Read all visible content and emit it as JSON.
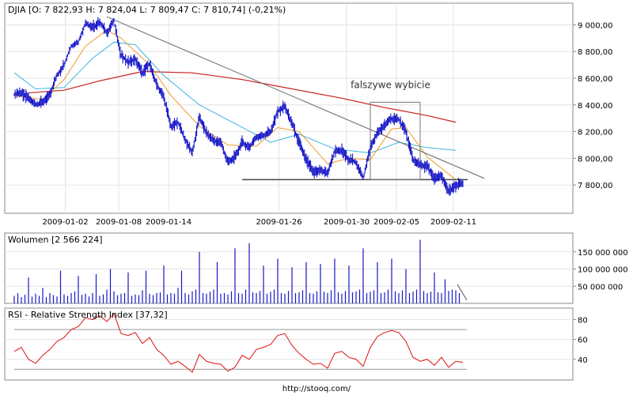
{
  "footer": {
    "url": "http://stooq.com/"
  },
  "chart_data": [
    {
      "type": "line",
      "title": "DJIA [O: 7 822,93  H: 7 824,04  L: 7 809,47  C: 7 810,74] (-0,21%)",
      "xlabel": "",
      "ylabel": "",
      "ylim": [
        7600,
        9150
      ],
      "x_ticks": [
        "2009-01-02",
        "2009-01-08",
        "2009-01-14",
        "2009-01-26",
        "2009-01-30",
        "2009-02-05",
        "2009-02-11"
      ],
      "y_ticks": [
        {
          "value": 9000,
          "label": "9 000,00"
        },
        {
          "value": 8800,
          "label": "8 800,00"
        },
        {
          "value": 8600,
          "label": "8 600,00"
        },
        {
          "value": 8400,
          "label": "8 400,00"
        },
        {
          "value": 8200,
          "label": "8 200,00"
        },
        {
          "value": 8000,
          "label": "8 000,00"
        },
        {
          "value": 7800,
          "label": "7 800,00"
        }
      ],
      "price_path": [
        [
          0,
          8480
        ],
        [
          2,
          8490
        ],
        [
          4,
          8455
        ],
        [
          6,
          8400
        ],
        [
          8,
          8420
        ],
        [
          10,
          8480
        ],
        [
          12,
          8620
        ],
        [
          14,
          8700
        ],
        [
          16,
          8840
        ],
        [
          18,
          8870
        ],
        [
          20,
          9010
        ],
        [
          22,
          8980
        ],
        [
          24,
          9020
        ],
        [
          26,
          8940
        ],
        [
          28,
          9030
        ],
        [
          30,
          8770
        ],
        [
          32,
          8720
        ],
        [
          34,
          8740
        ],
        [
          36,
          8640
        ],
        [
          38,
          8710
        ],
        [
          40,
          8550
        ],
        [
          42,
          8460
        ],
        [
          44,
          8240
        ],
        [
          46,
          8270
        ],
        [
          48,
          8140
        ],
        [
          50,
          8040
        ],
        [
          52,
          8310
        ],
        [
          54,
          8190
        ],
        [
          56,
          8130
        ],
        [
          58,
          8120
        ],
        [
          60,
          7970
        ],
        [
          62,
          8010
        ],
        [
          64,
          8120
        ],
        [
          66,
          8080
        ],
        [
          68,
          8160
        ],
        [
          70,
          8170
        ],
        [
          72,
          8200
        ],
        [
          74,
          8350
        ],
        [
          76,
          8390
        ],
        [
          78,
          8260
        ],
        [
          80,
          8120
        ],
        [
          82,
          7990
        ],
        [
          84,
          7900
        ],
        [
          86,
          7910
        ],
        [
          88,
          7890
        ],
        [
          90,
          8050
        ],
        [
          92,
          8060
        ],
        [
          94,
          7990
        ],
        [
          96,
          7970
        ],
        [
          98,
          7850
        ],
        [
          100,
          8080
        ],
        [
          102,
          8190
        ],
        [
          104,
          8250
        ],
        [
          106,
          8300
        ],
        [
          108,
          8290
        ],
        [
          110,
          8200
        ],
        [
          112,
          7990
        ],
        [
          114,
          7950
        ],
        [
          116,
          7940
        ],
        [
          118,
          7850
        ],
        [
          120,
          7870
        ],
        [
          122,
          7750
        ],
        [
          124,
          7800
        ],
        [
          126,
          7811
        ]
      ],
      "ma_orange": [
        [
          0,
          8470
        ],
        [
          8,
          8440
        ],
        [
          14,
          8590
        ],
        [
          20,
          8840
        ],
        [
          26,
          8960
        ],
        [
          30,
          8900
        ],
        [
          38,
          8700
        ],
        [
          44,
          8470
        ],
        [
          52,
          8240
        ],
        [
          60,
          8100
        ],
        [
          68,
          8090
        ],
        [
          74,
          8230
        ],
        [
          80,
          8200
        ],
        [
          88,
          7960
        ],
        [
          94,
          8000
        ],
        [
          100,
          7990
        ],
        [
          106,
          8220
        ],
        [
          110,
          8230
        ],
        [
          116,
          8010
        ],
        [
          124,
          7840
        ]
      ],
      "ma_cyan": [
        [
          0,
          8640
        ],
        [
          6,
          8520
        ],
        [
          14,
          8530
        ],
        [
          22,
          8750
        ],
        [
          28,
          8870
        ],
        [
          34,
          8850
        ],
        [
          42,
          8620
        ],
        [
          52,
          8400
        ],
        [
          62,
          8260
        ],
        [
          72,
          8120
        ],
        [
          80,
          8180
        ],
        [
          90,
          8070
        ],
        [
          100,
          8040
        ],
        [
          108,
          8120
        ],
        [
          116,
          8080
        ],
        [
          124,
          8060
        ]
      ],
      "ma_red": [
        [
          4,
          8490
        ],
        [
          14,
          8510
        ],
        [
          24,
          8580
        ],
        [
          36,
          8650
        ],
        [
          50,
          8640
        ],
        [
          64,
          8590
        ],
        [
          78,
          8520
        ],
        [
          92,
          8450
        ],
        [
          104,
          8380
        ],
        [
          116,
          8320
        ],
        [
          124,
          8270
        ]
      ],
      "trendline": [
        [
          26,
          9060
        ],
        [
          132,
          7850
        ]
      ],
      "support_line": [
        [
          64,
          7840
        ],
        [
          126,
          7840
        ]
      ],
      "annotation": {
        "text": "falszywe wybicie",
        "x_range": [
          100,
          114
        ],
        "y_range": [
          7840,
          8420
        ]
      }
    },
    {
      "type": "bar",
      "title": "Wolumen [2 566 224]",
      "ylim": [
        0,
        200000000
      ],
      "y_ticks": [
        {
          "value": 150000000,
          "label": "150 000 000"
        },
        {
          "value": 100000000,
          "label": "100 000 000"
        },
        {
          "value": 50000000,
          "label": "50 000 000"
        }
      ],
      "values_millions": [
        22,
        30,
        18,
        25,
        75,
        20,
        28,
        22,
        45,
        18,
        30,
        24,
        20,
        95,
        26,
        22,
        30,
        35,
        80,
        25,
        28,
        20,
        30,
        85,
        22,
        26,
        40,
        100,
        35,
        24,
        28,
        30,
        90,
        22,
        26,
        24,
        38,
        95,
        28,
        24,
        30,
        32,
        110,
        26,
        30,
        28,
        45,
        95,
        30,
        26,
        35,
        40,
        150,
        30,
        28,
        34,
        40,
        120,
        28,
        30,
        26,
        35,
        160,
        30,
        28,
        40,
        175,
        32,
        30,
        36,
        110,
        28,
        34,
        40,
        130,
        30,
        28,
        36,
        105,
        30,
        32,
        38,
        120,
        30,
        28,
        35,
        115,
        34,
        30,
        38,
        130,
        32,
        28,
        36,
        110,
        32,
        35,
        40,
        160,
        30,
        34,
        38,
        120,
        30,
        32,
        40,
        130,
        35,
        30,
        38,
        100,
        30,
        34,
        40,
        185,
        36,
        30,
        34,
        90,
        32,
        30,
        70,
        36,
        40,
        38,
        30
      ]
    },
    {
      "type": "line",
      "title": "RSI - Relative Strength Index [37,32]",
      "ylim": [
        20,
        90
      ],
      "y_ticks": [
        {
          "value": 80,
          "label": "80"
        },
        {
          "value": 60,
          "label": "60"
        },
        {
          "value": 40,
          "label": "40"
        }
      ],
      "reference_lines": [
        70,
        30
      ],
      "values": [
        [
          0,
          48
        ],
        [
          2,
          52
        ],
        [
          4,
          40
        ],
        [
          6,
          36
        ],
        [
          8,
          44
        ],
        [
          10,
          50
        ],
        [
          12,
          58
        ],
        [
          14,
          62
        ],
        [
          16,
          70
        ],
        [
          18,
          73
        ],
        [
          20,
          82
        ],
        [
          22,
          80
        ],
        [
          24,
          84
        ],
        [
          26,
          78
        ],
        [
          28,
          86
        ],
        [
          30,
          66
        ],
        [
          32,
          64
        ],
        [
          34,
          67
        ],
        [
          36,
          56
        ],
        [
          38,
          62
        ],
        [
          40,
          50
        ],
        [
          42,
          44
        ],
        [
          44,
          35
        ],
        [
          46,
          38
        ],
        [
          48,
          33
        ],
        [
          50,
          27
        ],
        [
          52,
          45
        ],
        [
          54,
          38
        ],
        [
          56,
          36
        ],
        [
          58,
          35
        ],
        [
          60,
          28
        ],
        [
          62,
          32
        ],
        [
          64,
          44
        ],
        [
          66,
          40
        ],
        [
          68,
          50
        ],
        [
          70,
          52
        ],
        [
          72,
          55
        ],
        [
          74,
          64
        ],
        [
          76,
          66
        ],
        [
          78,
          54
        ],
        [
          80,
          46
        ],
        [
          82,
          40
        ],
        [
          84,
          35
        ],
        [
          86,
          36
        ],
        [
          88,
          31
        ],
        [
          90,
          46
        ],
        [
          92,
          48
        ],
        [
          94,
          42
        ],
        [
          96,
          40
        ],
        [
          98,
          33
        ],
        [
          100,
          52
        ],
        [
          102,
          63
        ],
        [
          104,
          67
        ],
        [
          106,
          69
        ],
        [
          108,
          67
        ],
        [
          110,
          58
        ],
        [
          112,
          42
        ],
        [
          114,
          38
        ],
        [
          116,
          40
        ],
        [
          118,
          34
        ],
        [
          120,
          42
        ],
        [
          122,
          32
        ],
        [
          124,
          38
        ],
        [
          126,
          37
        ]
      ]
    }
  ]
}
